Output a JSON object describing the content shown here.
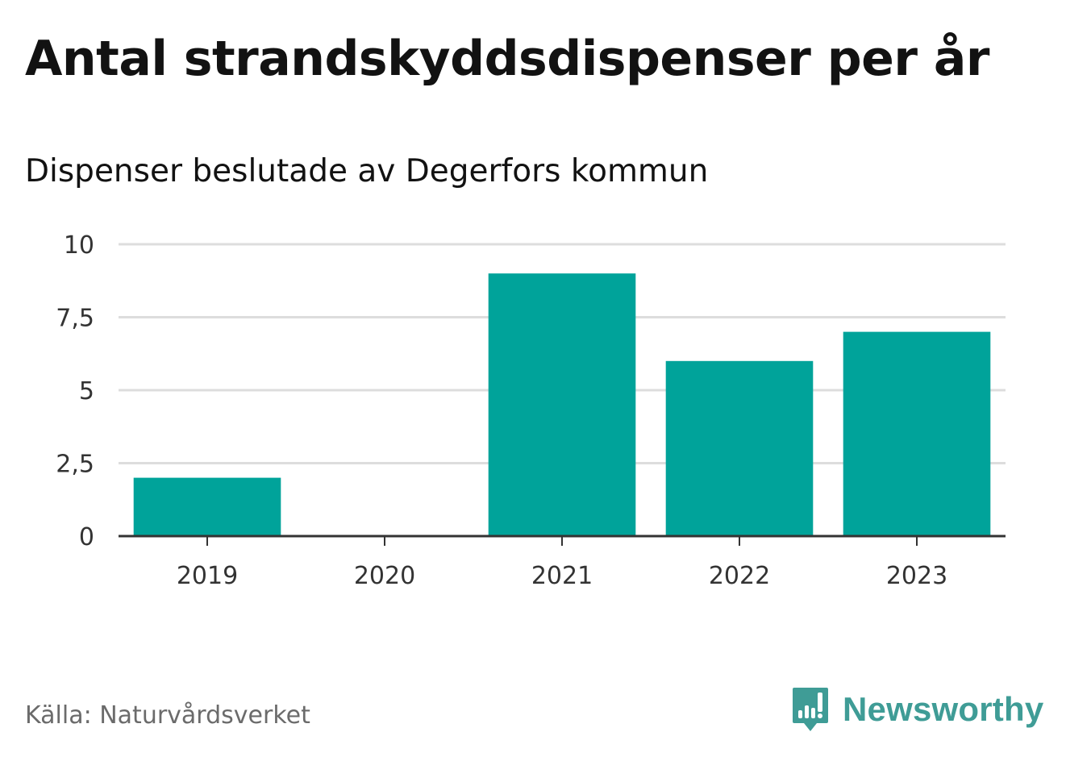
{
  "header": {
    "title": "Antal strandskyddsdispenser per år",
    "subtitle": "Dispenser beslutade av Degerfors kommun"
  },
  "footer": {
    "source": "Källa: Naturvårdsverket",
    "brand": "Newsworthy",
    "brand_icon": "newsworthy-logo-icon"
  },
  "colors": {
    "bar": "#00a39a",
    "grid": "#dddddd",
    "axis": "#333333",
    "brand": "#3f9c96"
  },
  "chart_data": {
    "type": "bar",
    "title": "Antal strandskyddsdispenser per år",
    "subtitle": "Dispenser beslutade av Degerfors kommun",
    "categories": [
      "2019",
      "2020",
      "2021",
      "2022",
      "2023"
    ],
    "values": [
      2,
      0,
      9,
      6,
      7
    ],
    "ylim": [
      0,
      10
    ],
    "yticks": [
      0,
      2.5,
      5,
      7.5,
      10
    ],
    "ytick_labels": [
      "0",
      "2,5",
      "5",
      "7,5",
      "10"
    ],
    "xlabel": "",
    "ylabel": "",
    "grid": true,
    "legend": "none"
  }
}
